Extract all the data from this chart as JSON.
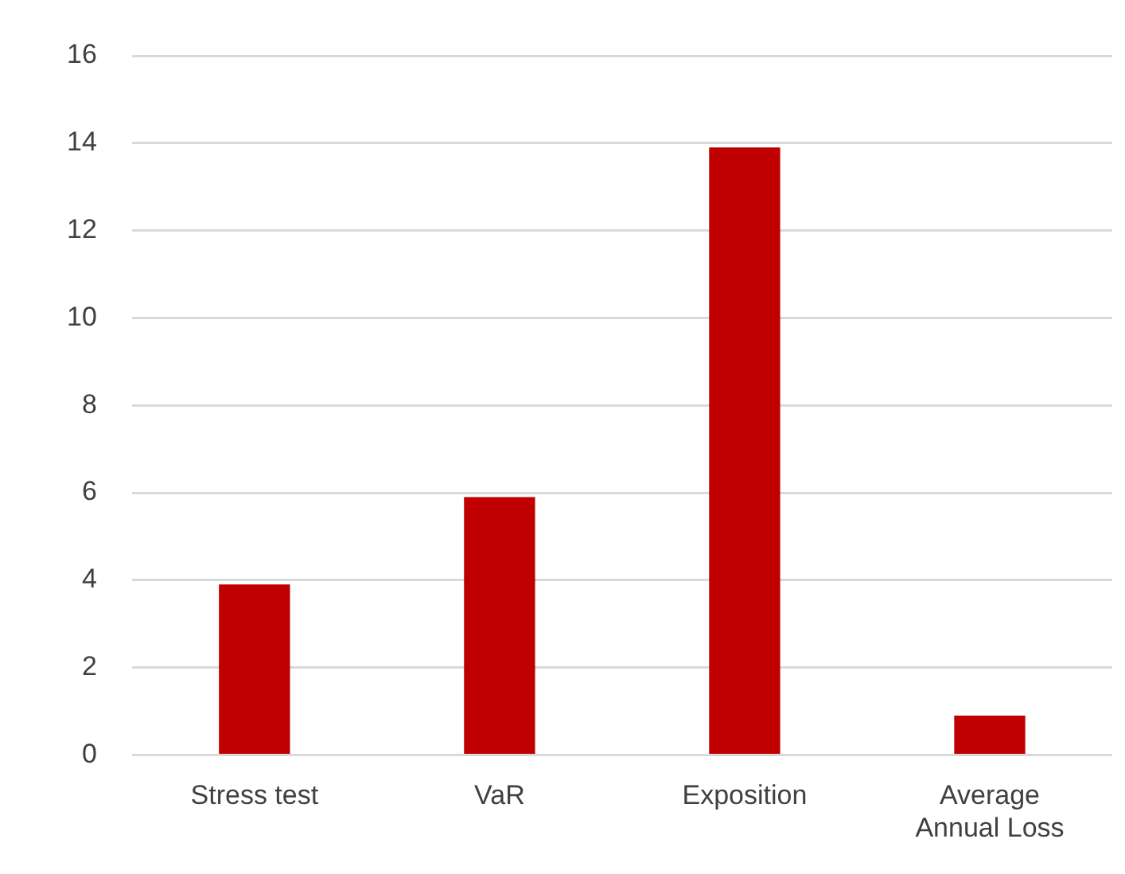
{
  "chart_data": {
    "type": "bar",
    "categories": [
      "Stress test",
      "VaR",
      "Exposition",
      "Average Annual Loss"
    ],
    "values": [
      3.9,
      5.9,
      13.9,
      0.9
    ],
    "color": "#c00000",
    "ylim": [
      0,
      16
    ],
    "yticks": [
      0,
      2,
      4,
      6,
      8,
      10,
      12,
      14,
      16
    ],
    "grid": "y",
    "legend": false
  }
}
